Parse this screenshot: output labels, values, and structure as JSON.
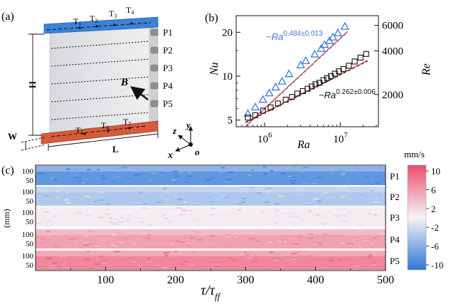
{
  "panel_labels": {
    "a": "(a)",
    "b": "(b)",
    "c": "(c)"
  },
  "schematic": {
    "probes": [
      "P1",
      "P2",
      "P3",
      "P4",
      "P5"
    ],
    "top_thermistors": [
      "T",
      "T",
      "T",
      "T"
    ],
    "top_thermistor_subs": [
      "1",
      "2",
      "3",
      "4"
    ],
    "bottom_thermistors": [
      "T",
      "T",
      "T"
    ],
    "bottom_thermistor_subs": [
      "5",
      "6",
      "7"
    ],
    "height_label": "H",
    "length_label": "L",
    "width_label": "W",
    "field_label": "B",
    "axes": {
      "x": "x",
      "y": "y",
      "z": "z",
      "origin": "o"
    },
    "colors": {
      "top_plate": "#3b82d9",
      "bottom_plate": "#d65a3c"
    }
  },
  "chart_data": [
    {
      "type": "scatter",
      "panel": "(b)",
      "xlabel": "Ra",
      "ylabel_left": "Nu",
      "ylabel_right": "Re",
      "xscale": "log",
      "xlim": [
        420000,
        32000000
      ],
      "ylim_left": [
        4.5,
        26
      ],
      "ylim_right": [
        1200,
        7000
      ],
      "xticks": [
        {
          "value": 1000000,
          "base": "10",
          "exp": "6"
        },
        {
          "value": 10000000,
          "base": "10",
          "exp": "7"
        }
      ],
      "yticks_left": [
        5,
        10,
        20
      ],
      "yticks_right": [
        2000,
        4000,
        6000
      ],
      "series": [
        {
          "name": "Re",
          "axis": "right",
          "marker": "triangle",
          "color": "#3d78d8",
          "fit_prefix": "~Ra",
          "fit_exponent": "0.484±0.013",
          "fit_coeff": 2.0,
          "fit_exp_value": 0.484,
          "x": [
            600000,
            750000,
            950000,
            1150000,
            1400000,
            1700000,
            2100000,
            3000000,
            3500000,
            4600000,
            5600000,
            6200000,
            7200000,
            8000000,
            9300000,
            11500000
          ],
          "y": [
            1480,
            1640,
            1850,
            2050,
            2250,
            2470,
            2780,
            3200,
            3420,
            3800,
            4150,
            4420,
            4700,
            4980,
            5320,
            5900
          ]
        },
        {
          "name": "Nu",
          "axis": "left",
          "marker": "square",
          "color": "#111111",
          "fit_prefix": "~Ra",
          "fit_exponent": "0.262±0.006",
          "fit_coeff": 0.151,
          "fit_exp_value": 0.262,
          "x": [
            600000,
            750000,
            950000,
            1200000,
            1500000,
            1900000,
            2300000,
            2700000,
            3200000,
            3700000,
            4200000,
            4700000,
            5300000,
            6000000,
            6700000,
            7500000,
            8500000,
            9600000,
            11000000,
            13000000,
            15500000,
            18500000,
            22000000
          ],
          "y": [
            5.2,
            5.4,
            5.8,
            6.1,
            6.5,
            6.9,
            7.2,
            7.6,
            7.9,
            8.2,
            8.5,
            8.8,
            9.0,
            9.4,
            9.7,
            10.0,
            10.4,
            10.8,
            11.2,
            11.8,
            12.6,
            13.4,
            14.2
          ]
        }
      ]
    },
    {
      "type": "heatmap",
      "panel": "(c)",
      "xlabel": "τ/τ",
      "xlabel_sub": "ff",
      "ylabel": "(mm)",
      "xlim": [
        0,
        500
      ],
      "xticks": [
        100,
        200,
        300,
        400,
        500
      ],
      "ytick_labels": [
        "100",
        "50"
      ],
      "rows": [
        {
          "label": "P1",
          "mean": -7.5
        },
        {
          "label": "P2",
          "mean": -3.5
        },
        {
          "label": "P3",
          "mean": 0.5
        },
        {
          "label": "P4",
          "mean": 5.0
        },
        {
          "label": "P5",
          "mean": 6.5
        }
      ],
      "colorbar": {
        "unit": "mm/s",
        "ticks": [
          10,
          6,
          2,
          -2,
          -6,
          -10
        ],
        "range": [
          -10,
          10
        ],
        "colors": {
          "negative": "#2f78d6",
          "neutral": "#f4f4f8",
          "positive": "#ee4d6b"
        }
      }
    }
  ]
}
